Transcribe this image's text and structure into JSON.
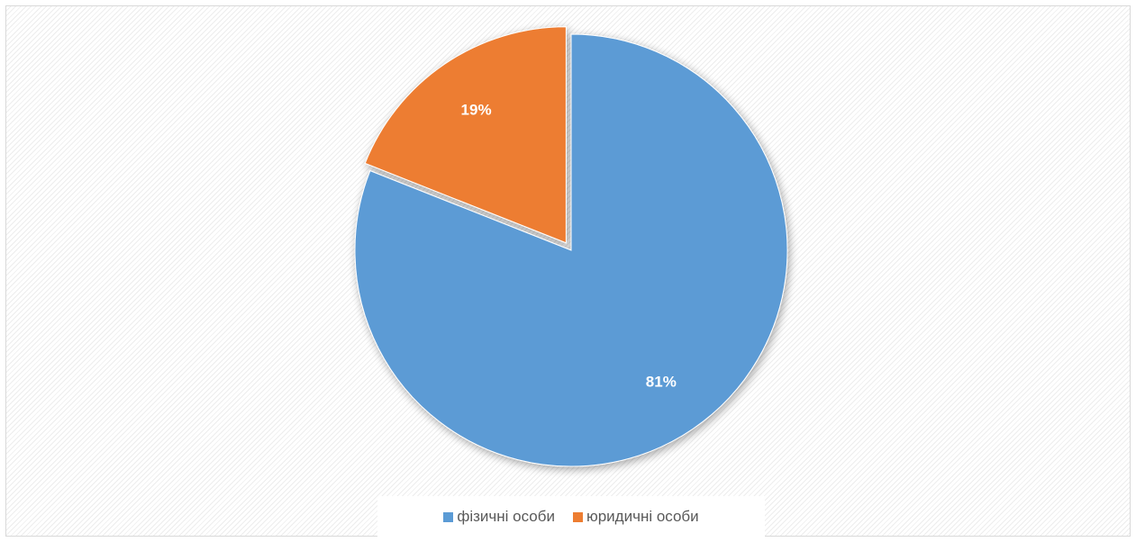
{
  "chart_data": {
    "type": "pie",
    "slices": [
      {
        "name": "фізичні особи",
        "value": 81,
        "label": "81%",
        "color": "#5b9bd5"
      },
      {
        "name": "юридичні особи",
        "value": 19,
        "label": "19%",
        "color": "#ed7d31"
      }
    ],
    "legend_position": "bottom",
    "exploded_slice": "юридичні особи",
    "background_pattern": "diagonal-hatch"
  }
}
